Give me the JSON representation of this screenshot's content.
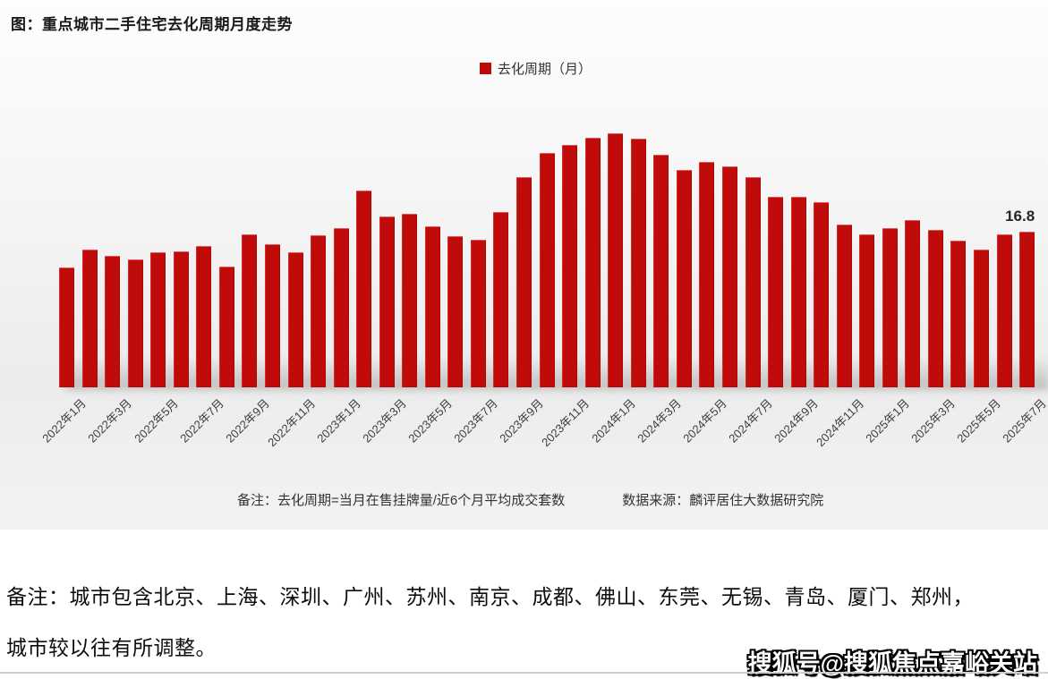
{
  "title": "图：重点城市二手住宅去化周期月度走势",
  "legend": {
    "label": "去化周期（月）",
    "color": "#c00b0b"
  },
  "chart_data": {
    "type": "bar",
    "title": "重点城市二手住宅去化周期月度走势",
    "ylabel": "去化周期（月）",
    "xlabel": "",
    "ylim": [
      0,
      30
    ],
    "grid": false,
    "legend_position": "top-center",
    "x_tick_step": 2,
    "bar_color": "#c00b0b",
    "last_value_label": "16.8",
    "x": [
      "2022年1月",
      "2022年2月",
      "2022年3月",
      "2022年4月",
      "2022年5月",
      "2022年6月",
      "2022年7月",
      "2022年8月",
      "2022年9月",
      "2022年10月",
      "2022年11月",
      "2022年12月",
      "2023年1月",
      "2023年2月",
      "2023年3月",
      "2023年4月",
      "2023年5月",
      "2023年6月",
      "2023年7月",
      "2023年8月",
      "2023年9月",
      "2023年10月",
      "2023年11月",
      "2023年12月",
      "2024年1月",
      "2024年2月",
      "2024年3月",
      "2024年4月",
      "2024年5月",
      "2024年6月",
      "2024年7月",
      "2024年8月",
      "2024年9月",
      "2024年10月",
      "2024年11月",
      "2024年12月",
      "2025年1月",
      "2025年2月",
      "2025年3月",
      "2025年4月",
      "2025年5月",
      "2025年6月",
      "2025年7月"
    ],
    "values": [
      12.9,
      14.9,
      14.2,
      13.8,
      14.6,
      14.7,
      15.3,
      13.0,
      16.5,
      15.5,
      14.6,
      16.4,
      17.2,
      21.2,
      18.4,
      18.7,
      17.4,
      16.3,
      15.9,
      18.9,
      22.7,
      25.3,
      26.2,
      26.9,
      27.4,
      26.8,
      25.1,
      23.5,
      24.3,
      23.9,
      22.7,
      20.6,
      20.6,
      20.0,
      17.6,
      16.5,
      17.2,
      18.1,
      17.0,
      15.8,
      14.9,
      16.5,
      16.8
    ]
  },
  "notes": {
    "formula": "备注：去化周期=当月在售挂牌量/近6个月平均成交套数",
    "source": "数据来源：麟评居住大数据研究院"
  },
  "footer": {
    "line1": "备注：城市包含北京、上海、深圳、广州、苏州、南京、成都、佛山、东莞、无锡、青岛、厦门、郑州，",
    "line2": "城市较以往有所调整。"
  },
  "watermark": "搜狐号@搜狐焦点嘉峪关站"
}
